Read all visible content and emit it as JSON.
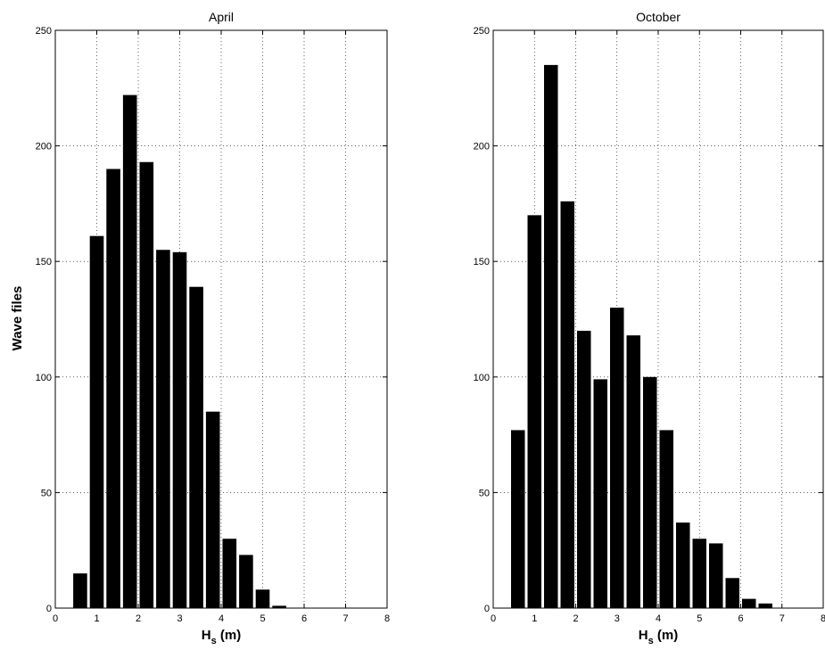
{
  "chart_data": [
    {
      "type": "bar",
      "title": "April",
      "xlabel": {
        "main": "H",
        "sub": "s",
        "rest": " (m)"
      },
      "ylabel": "Wave files",
      "xlim": [
        0,
        8
      ],
      "ylim": [
        0,
        250
      ],
      "xticks": [
        "0",
        "1",
        "2",
        "3",
        "4",
        "5",
        "6",
        "7",
        "8"
      ],
      "yticks": [
        "0",
        "50",
        "100",
        "150",
        "200",
        "250"
      ],
      "grid": true,
      "bar_width": 0.4,
      "bar_color": "#000000",
      "x": [
        0.6,
        1.0,
        1.4,
        1.8,
        2.2,
        2.6,
        3.0,
        3.4,
        3.8,
        4.2,
        4.6,
        5.0,
        5.4,
        5.8
      ],
      "values": [
        15,
        161,
        190,
        222,
        193,
        155,
        154,
        139,
        85,
        30,
        23,
        8,
        1,
        0
      ]
    },
    {
      "type": "bar",
      "title": "October",
      "xlabel": {
        "main": "H",
        "sub": "s",
        "rest": " (m)"
      },
      "ylabel": "",
      "xlim": [
        0,
        8
      ],
      "ylim": [
        0,
        250
      ],
      "xticks": [
        "0",
        "1",
        "2",
        "3",
        "4",
        "5",
        "6",
        "7",
        "8"
      ],
      "yticks": [
        "0",
        "50",
        "100",
        "150",
        "200",
        "250"
      ],
      "grid": true,
      "bar_width": 0.4,
      "bar_color": "#000000",
      "x": [
        0.6,
        1.0,
        1.4,
        1.8,
        2.2,
        2.6,
        3.0,
        3.4,
        3.8,
        4.2,
        4.6,
        5.0,
        5.4,
        5.8,
        6.2,
        6.6,
        7.0
      ],
      "values": [
        77,
        170,
        235,
        176,
        120,
        99,
        130,
        118,
        100,
        77,
        37,
        30,
        28,
        13,
        4,
        2,
        0
      ]
    }
  ]
}
